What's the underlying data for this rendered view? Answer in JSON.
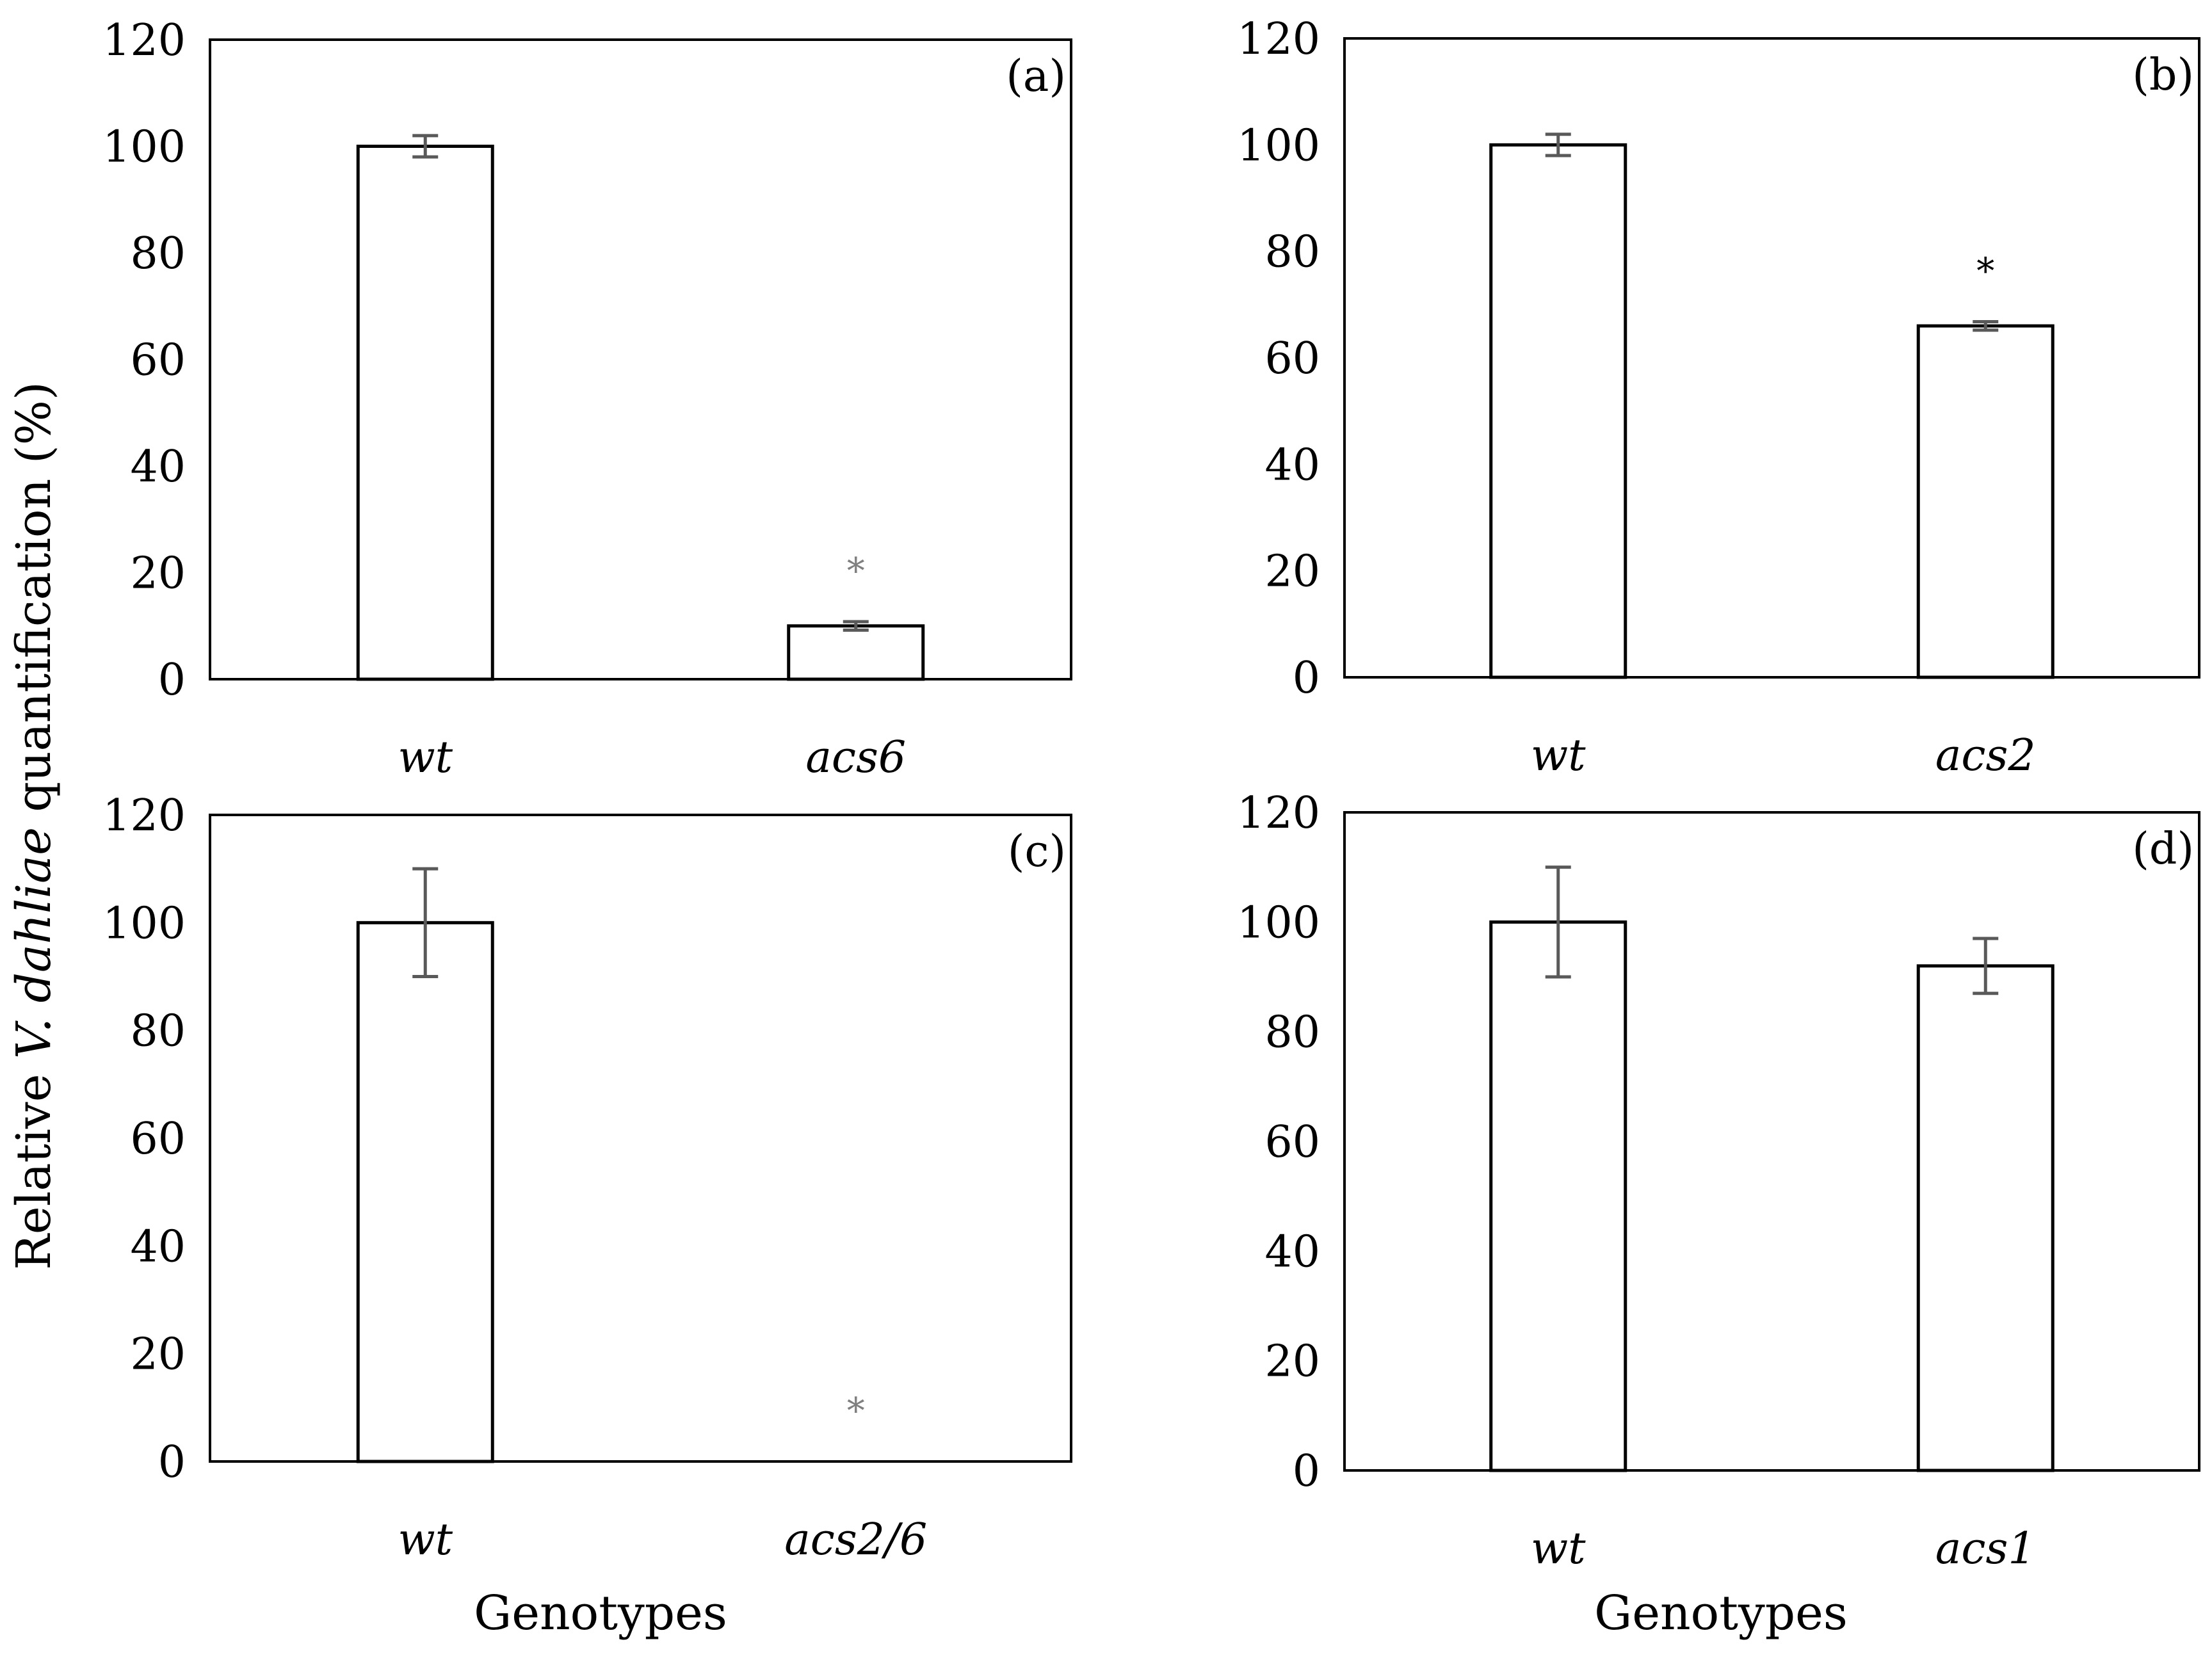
{
  "figure": {
    "ylabel_parts": [
      "Relative ",
      "V. dahliae",
      " quantification (%)"
    ],
    "xlabel": "Genotypes"
  },
  "chart_data": [
    {
      "type": "bar",
      "panel_label": "(a)",
      "categories": [
        "wt",
        "acs6"
      ],
      "values": [
        100,
        10
      ],
      "errors": [
        2,
        0.8
      ],
      "significance": [
        "",
        "*"
      ],
      "yticks": [
        "0",
        "20",
        "40",
        "60",
        "80",
        "100",
        "120"
      ],
      "ylim": [
        0,
        120
      ],
      "grid": false,
      "bar_fill": "#ffffff",
      "bar_stroke": "#000000",
      "errorbar_color": "#595959",
      "significance_color": "#7f7f7f"
    },
    {
      "type": "bar",
      "panel_label": "(b)",
      "categories": [
        "wt",
        "acs2"
      ],
      "values": [
        100,
        66
      ],
      "errors": [
        2,
        0.8
      ],
      "significance": [
        "",
        "*"
      ],
      "yticks": [
        "0",
        "20",
        "40",
        "60",
        "80",
        "100",
        "120"
      ],
      "ylim": [
        0,
        120
      ],
      "grid": false,
      "bar_fill": "#ffffff",
      "bar_stroke": "#000000",
      "errorbar_color": "#595959",
      "significance_color": "#000000"
    },
    {
      "type": "bar",
      "panel_label": "(c)",
      "categories": [
        "wt",
        "acs2/6"
      ],
      "values": [
        100,
        0
      ],
      "errors": [
        10,
        0
      ],
      "significance": [
        "",
        "*"
      ],
      "yticks": [
        "0",
        "20",
        "40",
        "60",
        "80",
        "100",
        "120"
      ],
      "ylim": [
        0,
        120
      ],
      "grid": false,
      "bar_fill": "#ffffff",
      "bar_stroke": "#000000",
      "errorbar_color": "#595959",
      "significance_color": "#7f7f7f"
    },
    {
      "type": "bar",
      "panel_label": "(d)",
      "categories": [
        "wt",
        "acs1"
      ],
      "values": [
        100,
        92
      ],
      "errors": [
        10,
        5
      ],
      "significance": [
        "",
        ""
      ],
      "yticks": [
        "0",
        "20",
        "40",
        "60",
        "80",
        "100",
        "120"
      ],
      "ylim": [
        0,
        120
      ],
      "grid": false,
      "bar_fill": "#ffffff",
      "bar_stroke": "#000000",
      "errorbar_color": "#595959",
      "significance_color": "#000000"
    }
  ]
}
